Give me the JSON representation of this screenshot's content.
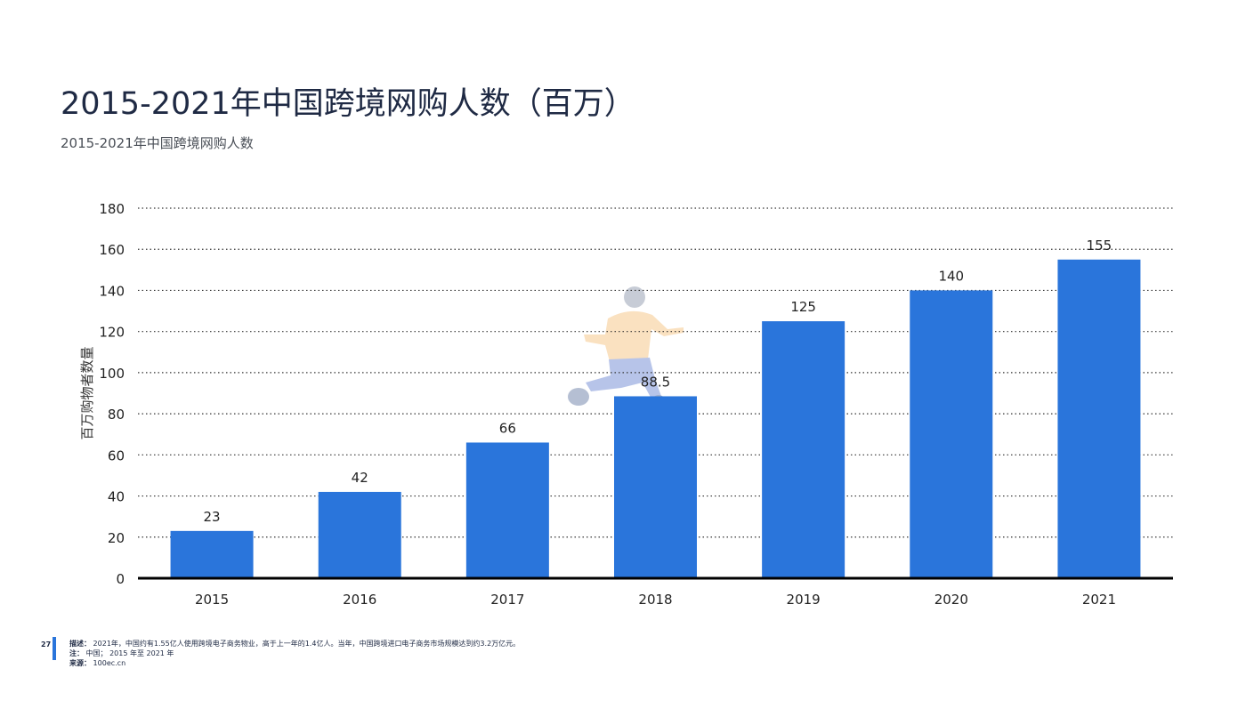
{
  "slide": {
    "title": "2015-2021年中国跨境网购人数（百万）",
    "subtitle": "2015-2021年中国跨境网购人数",
    "page_number": "27"
  },
  "notes": {
    "description_label": "描述：",
    "description": "2021年，中国约有1.55亿人使用跨境电子商务物业，高于上一年的1.4亿人。当年，中国跨境进口电子商务市场规模达到约3.2万亿元。",
    "note_label": "注：",
    "note": "中国； 2015 年至 2021 年",
    "source_label": "来源：",
    "source": "100ec.cn"
  },
  "chart_data": {
    "type": "bar",
    "categories": [
      "2015",
      "2016",
      "2017",
      "2018",
      "2019",
      "2020",
      "2021"
    ],
    "values": [
      23,
      42,
      66,
      88.5,
      125,
      140,
      155
    ],
    "data_labels": [
      "23",
      "42",
      "66",
      "88.5",
      "125",
      "140",
      "155"
    ],
    "ylabel": "百万购物者数量",
    "xlabel": "",
    "ylim": [
      0,
      180
    ],
    "yticks": [
      0,
      20,
      40,
      60,
      80,
      100,
      120,
      140,
      160,
      180
    ],
    "grid": true,
    "bar_color": "#2a75db"
  },
  "decoration": {
    "illustration": "running-person-icon"
  }
}
